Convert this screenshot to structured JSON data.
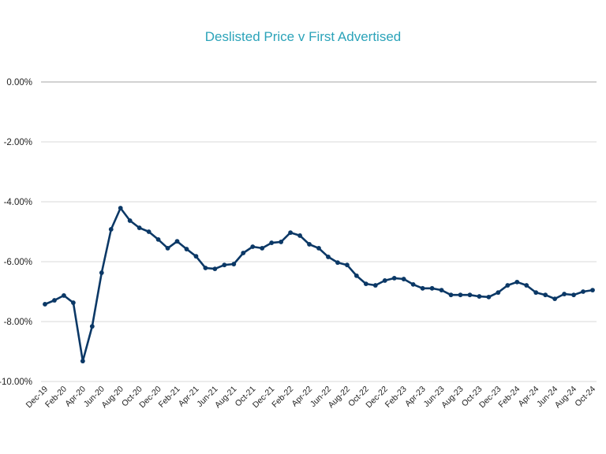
{
  "chart_data": {
    "type": "line",
    "title": "Deslisted Price v First Advertised",
    "xlabel": "",
    "ylabel": "",
    "ylim": [
      -10,
      0
    ],
    "yticks": [
      0,
      -2,
      -4,
      -6,
      -8,
      -10
    ],
    "ytick_labels": [
      "0.00%",
      "-2.00%",
      "-4.00%",
      "-6.00%",
      "-8.00%",
      "-10.00%"
    ],
    "grid": true,
    "legend": "none",
    "colors": {
      "line": "#0b3866",
      "title": "#2ba3b9",
      "grid": "#d9d9d9",
      "zero_line": "#a6a6a6"
    },
    "x": [
      "Dec-19",
      "Jan-20",
      "Feb-20",
      "Mar-20",
      "Apr-20",
      "May-20",
      "Jun-20",
      "Jul-20",
      "Aug-20",
      "Sep-20",
      "Oct-20",
      "Nov-20",
      "Dec-20",
      "Jan-21",
      "Feb-21",
      "Mar-21",
      "Apr-21",
      "May-21",
      "Jun-21",
      "Jul-21",
      "Aug-21",
      "Sep-21",
      "Oct-21",
      "Nov-21",
      "Dec-21",
      "Jan-22",
      "Feb-22",
      "Mar-22",
      "Apr-22",
      "May-22",
      "Jun-22",
      "Jul-22",
      "Aug-22",
      "Sep-22",
      "Oct-22",
      "Nov-22",
      "Dec-22",
      "Jan-23",
      "Feb-23",
      "Mar-23",
      "Apr-23",
      "May-23",
      "Jun-23",
      "Jul-23",
      "Aug-23",
      "Sep-23",
      "Oct-23",
      "Nov-23",
      "Dec-23",
      "Jan-24",
      "Feb-24",
      "Mar-24",
      "Apr-24",
      "May-24",
      "Jun-24",
      "Jul-24",
      "Aug-24",
      "Sep-24",
      "Oct-24"
    ],
    "xtick_labels": [
      "Dec-19",
      "Feb-20",
      "Apr-20",
      "Jun-20",
      "Aug-20",
      "Oct-20",
      "Dec-20",
      "Feb-21",
      "Apr-21",
      "Jun-21",
      "Aug-21",
      "Oct-21",
      "Dec-21",
      "Feb-22",
      "Apr-22",
      "Jun-22",
      "Aug-22",
      "Oct-22",
      "Dec-22",
      "Feb-23",
      "Apr-23",
      "Jun-23",
      "Aug-23",
      "Oct-23",
      "Dec-23",
      "Feb-24",
      "Apr-24",
      "Jun-24",
      "Aug-24",
      "Oct-24"
    ],
    "series": [
      {
        "name": "Deslisted Price v First Advertised",
        "values": [
          -7.42,
          -7.29,
          -7.13,
          -7.37,
          -9.32,
          -8.16,
          -6.37,
          -4.92,
          -4.21,
          -4.63,
          -4.87,
          -5.0,
          -5.26,
          -5.55,
          -5.32,
          -5.58,
          -5.82,
          -6.21,
          -6.24,
          -6.11,
          -6.08,
          -5.71,
          -5.5,
          -5.55,
          -5.37,
          -5.34,
          -5.03,
          -5.13,
          -5.42,
          -5.55,
          -5.84,
          -6.03,
          -6.11,
          -6.47,
          -6.74,
          -6.79,
          -6.63,
          -6.55,
          -6.58,
          -6.76,
          -6.89,
          -6.89,
          -6.95,
          -7.11,
          -7.11,
          -7.11,
          -7.16,
          -7.18,
          -7.03,
          -6.79,
          -6.68,
          -6.79,
          -7.03,
          -7.11,
          -7.24,
          -7.08,
          -7.11,
          -7.0,
          -6.95
        ]
      }
    ]
  }
}
